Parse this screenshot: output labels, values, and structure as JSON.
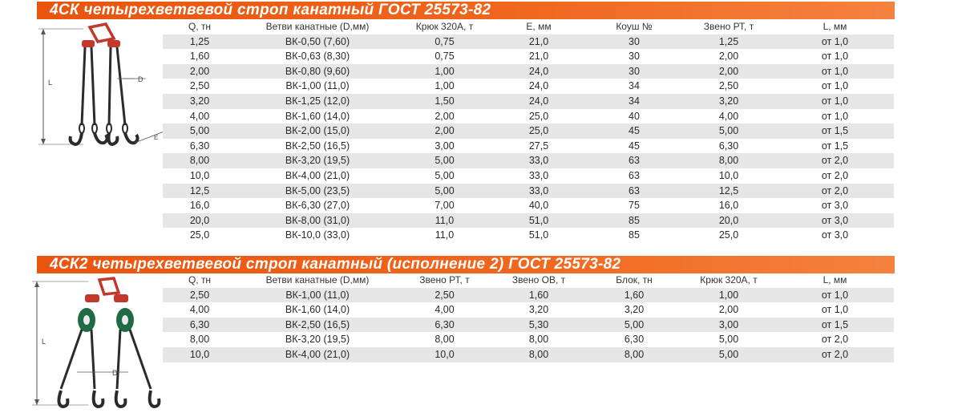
{
  "section1": {
    "title": "4СК четырехветвевой строп канатный ГОСТ 25573-82",
    "columns": [
      "Q, тн",
      "Ветви канатные (D,мм)",
      "Крюк 320А, т",
      "Е, мм",
      "Коуш №",
      "Звено РТ, т",
      "L, мм"
    ],
    "rows": [
      [
        "1,25",
        "ВК-0,50 (7,60)",
        "0,75",
        "21,0",
        "30",
        "1,25",
        "от 1,0"
      ],
      [
        "1,60",
        "ВК-0,63 (8,30)",
        "0,75",
        "21,0",
        "30",
        "2,00",
        "от 1,0"
      ],
      [
        "2,00",
        "ВК-0,80 (9,60)",
        "1,00",
        "24,0",
        "30",
        "2,00",
        "от 1,0"
      ],
      [
        "2,50",
        "ВК-1,00 (11,0)",
        "1,00",
        "24,0",
        "34",
        "2,50",
        "от 1,0"
      ],
      [
        "3,20",
        "ВК-1,25 (12,0)",
        "1,50",
        "24,0",
        "34",
        "3,20",
        "от 1,0"
      ],
      [
        "4,00",
        "ВК-1,60 (14,0)",
        "2,00",
        "25,0",
        "40",
        "4,00",
        "от 1,0"
      ],
      [
        "5,00",
        "ВК-2,00 (15,0)",
        "2,00",
        "25,0",
        "45",
        "5,00",
        "от 1,5"
      ],
      [
        "6,30",
        "ВК-2,50 (16,5)",
        "3,00",
        "27,5",
        "45",
        "6,30",
        "от 1,5"
      ],
      [
        "8,00",
        "ВК-3,20 (19,5)",
        "5,00",
        "33,0",
        "63",
        "8,00",
        "от 2,0"
      ],
      [
        "10,0",
        "ВК-4,00 (21,0)",
        "5,00",
        "33,0",
        "63",
        "10,0",
        "от 2,0"
      ],
      [
        "12,5",
        "ВК-5,00 (23,5)",
        "5,00",
        "33,0",
        "63",
        "12,5",
        "от 2,0"
      ],
      [
        "16,0",
        "ВК-6,30 (27,0)",
        "7,00",
        "40,0",
        "75",
        "16,0",
        "от 3,0"
      ],
      [
        "20,0",
        "ВК-8,00 (31,0)",
        "11,0",
        "51,0",
        "85",
        "20,0",
        "от 3,0"
      ],
      [
        "25,0",
        "ВК-10,0 (33,0)",
        "11,0",
        "51,0",
        "85",
        "25,0",
        "от 3,0"
      ]
    ],
    "diagram_labels": {
      "length": "L",
      "diameter": "D",
      "hook": "E"
    }
  },
  "section2": {
    "title": "4СК2 четырехветвевой строп канатный (исполнение 2) ГОСТ 25573-82",
    "columns": [
      "Q, тн",
      "Ветви канатные (D,мм)",
      "Звено РТ, т",
      "Звено ОВ, т",
      "Блок, тн",
      "Крюк 320А, т",
      "L, мм"
    ],
    "rows": [
      [
        "2,50",
        "ВК-1,00 (11,0)",
        "2,50",
        "1,60",
        "1,60",
        "1,00",
        "от 1,0"
      ],
      [
        "4,00",
        "ВК-1,60 (14,0)",
        "4,00",
        "3,20",
        "3,20",
        "2,00",
        "от 1,0"
      ],
      [
        "6,30",
        "ВК-2,50 (16,5)",
        "6,30",
        "5,30",
        "5,00",
        "3,00",
        "от 1,5"
      ],
      [
        "8,00",
        "ВК-3,20 (19,5)",
        "8,00",
        "8,00",
        "6,30",
        "5,00",
        "от 2,0"
      ],
      [
        "10,0",
        "ВК-4,00 (21,0)",
        "10,0",
        "8,00",
        "8,00",
        "5,00",
        "от 2,0"
      ]
    ],
    "diagram_labels": {
      "length": "L",
      "diameter": "D"
    }
  },
  "colors": {
    "header_orange": "#ee5a14",
    "row_stripe": "#e6e6e6",
    "shackle_red": "#c0392b",
    "block_green": "#1f6b45",
    "rope_dark": "#2b2b2b"
  }
}
